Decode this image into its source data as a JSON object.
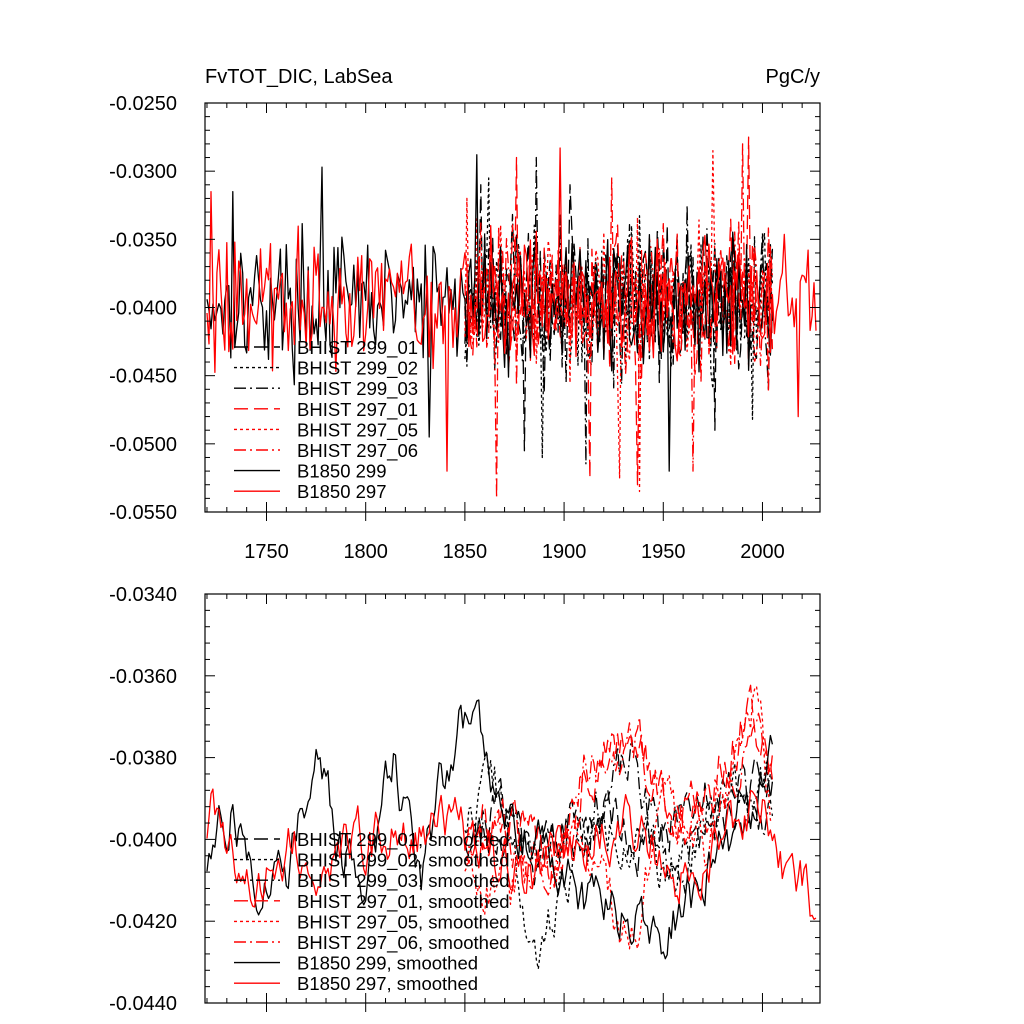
{
  "chart_data": [
    {
      "type": "line",
      "title": "FvTOT_DIC, LabSea",
      "units": "PgC/y",
      "xlim": [
        1719,
        2029
      ],
      "ylim": [
        -0.055,
        -0.025
      ],
      "xticks": [
        1750,
        1800,
        1850,
        1900,
        1950,
        2000
      ],
      "yticks": [
        -0.055,
        -0.05,
        -0.045,
        -0.04,
        -0.035,
        -0.03,
        -0.025
      ],
      "ytick_labels": [
        "-0.0550",
        "-0.0500",
        "-0.0450",
        "-0.0400",
        "-0.0350",
        "-0.0300",
        "-0.0250"
      ],
      "legend_position": "left-lower",
      "series": [
        {
          "name": "BHIST 299_01",
          "color": "#000000",
          "dash": "long-dash",
          "x_range": [
            1850,
            2005
          ],
          "mean": -0.0395,
          "amplitude": 0.004,
          "spikes": [
            [
              1858,
              -0.031
            ],
            [
              1880,
              -0.0505
            ],
            [
              1903,
              -0.031
            ],
            [
              1948,
              -0.0455
            ],
            [
              1976,
              -0.049
            ]
          ],
          "seed": 11
        },
        {
          "name": "BHIST 299_02",
          "color": "#000000",
          "dash": "dot",
          "x_range": [
            1850,
            2005
          ],
          "mean": -0.0395,
          "amplitude": 0.004,
          "spikes": [
            [
              1862,
              -0.0305
            ],
            [
              1889,
              -0.051
            ],
            [
              1934,
              -0.034
            ],
            [
              1995,
              -0.0482
            ]
          ],
          "seed": 12
        },
        {
          "name": "BHIST 299_03",
          "color": "#000000",
          "dash": "dash-dot",
          "x_range": [
            1850,
            2005
          ],
          "mean": -0.0395,
          "amplitude": 0.004,
          "spikes": [
            [
              1886,
              -0.029
            ],
            [
              1911,
              -0.0515
            ],
            [
              1962,
              -0.0325
            ],
            [
              2003,
              -0.046
            ]
          ],
          "seed": 13
        },
        {
          "name": "BHIST 297_01",
          "color": "#ff0000",
          "dash": "long-dash",
          "x_range": [
            1850,
            2005
          ],
          "mean": -0.0395,
          "amplitude": 0.004,
          "spikes": [
            [
              1876,
              -0.029
            ],
            [
              1913,
              -0.0525
            ],
            [
              1937,
              -0.053
            ],
            [
              1993,
              -0.0275
            ]
          ],
          "seed": 14
        },
        {
          "name": "BHIST 297_05",
          "color": "#ff0000",
          "dash": "dot",
          "x_range": [
            1850,
            2005
          ],
          "mean": -0.0395,
          "amplitude": 0.004,
          "spikes": [
            [
              1851,
              -0.032
            ],
            [
              1928,
              -0.0525
            ],
            [
              1938,
              -0.0535
            ],
            [
              1975,
              -0.0285
            ]
          ],
          "seed": 15
        },
        {
          "name": "BHIST 297_06",
          "color": "#ff0000",
          "dash": "dash-dot",
          "x_range": [
            1850,
            2005
          ],
          "mean": -0.0395,
          "amplitude": 0.004,
          "spikes": [
            [
              1866,
              -0.054
            ],
            [
              1924,
              -0.0305
            ],
            [
              1965,
              -0.052
            ],
            [
              1990,
              -0.028
            ]
          ],
          "seed": 16
        },
        {
          "name": "B1850 299",
          "color": "#000000",
          "dash": "solid",
          "x_range": [
            1720,
            2005
          ],
          "mean": -0.0395,
          "amplitude": 0.0036,
          "spikes": [
            [
              1733,
              -0.0315
            ],
            [
              1778,
              -0.0297
            ],
            [
              1856,
              -0.0288
            ],
            [
              1832,
              -0.0495
            ],
            [
              1953,
              -0.052
            ]
          ],
          "seed": 17
        },
        {
          "name": "B1850 297",
          "color": "#ff0000",
          "dash": "solid",
          "x_range": [
            1720,
            2027
          ],
          "mean": -0.0395,
          "amplitude": 0.0036,
          "spikes": [
            [
              1722,
              -0.0315
            ],
            [
              1841,
              -0.052
            ],
            [
              1898,
              -0.0283
            ],
            [
              2018,
              -0.048
            ]
          ],
          "seed": 18
        }
      ]
    },
    {
      "type": "line",
      "title": "",
      "xlim": [
        1719,
        2029
      ],
      "ylim": [
        -0.044,
        -0.034
      ],
      "xticks": [
        1750,
        1800,
        1850,
        1900,
        1950,
        2000
      ],
      "yticks": [
        -0.044,
        -0.042,
        -0.04,
        -0.038,
        -0.036,
        -0.034
      ],
      "ytick_labels": [
        "-0.0440",
        "-0.0420",
        "-0.0400",
        "-0.0380",
        "-0.0360",
        "-0.0340"
      ],
      "legend_position": "left-lower",
      "series": [
        {
          "name": "BHIST 299_01, smoothed",
          "color": "#000000",
          "dash": "long-dash",
          "x_range": [
            1850,
            2005
          ],
          "anchors": [
            [
              1850,
              -0.0398
            ],
            [
              1868,
              -0.039
            ],
            [
              1885,
              -0.0402
            ],
            [
              1905,
              -0.0396
            ],
            [
              1925,
              -0.0392
            ],
            [
              1945,
              -0.0404
            ],
            [
              1965,
              -0.0386
            ],
            [
              1985,
              -0.0392
            ],
            [
              2005,
              -0.0388
            ]
          ],
          "seed": 21
        },
        {
          "name": "BHIST 299_02, smoothed",
          "color": "#000000",
          "dash": "dot",
          "x_range": [
            1850,
            2005
          ],
          "anchors": [
            [
              1850,
              -0.0395
            ],
            [
              1865,
              -0.0384
            ],
            [
              1886,
              -0.0434
            ],
            [
              1905,
              -0.0402
            ],
            [
              1930,
              -0.0396
            ],
            [
              1950,
              -0.041
            ],
            [
              1970,
              -0.0395
            ],
            [
              1988,
              -0.0386
            ],
            [
              2005,
              -0.0392
            ]
          ],
          "seed": 22
        },
        {
          "name": "BHIST 299_03, smoothed",
          "color": "#000000",
          "dash": "dash-dot",
          "x_range": [
            1850,
            2005
          ],
          "anchors": [
            [
              1850,
              -0.0402
            ],
            [
              1870,
              -0.0396
            ],
            [
              1892,
              -0.0403
            ],
            [
              1912,
              -0.0394
            ],
            [
              1935,
              -0.0382
            ],
            [
              1955,
              -0.0408
            ],
            [
              1975,
              -0.0397
            ],
            [
              1992,
              -0.0388
            ],
            [
              2005,
              -0.0393
            ]
          ],
          "seed": 23
        },
        {
          "name": "BHIST 297_01, smoothed",
          "color": "#ff0000",
          "dash": "long-dash",
          "x_range": [
            1850,
            2005
          ],
          "anchors": [
            [
              1850,
              -0.0402
            ],
            [
              1870,
              -0.0396
            ],
            [
              1895,
              -0.0405
            ],
            [
              1912,
              -0.0383
            ],
            [
              1935,
              -0.0372
            ],
            [
              1955,
              -0.0398
            ],
            [
              1978,
              -0.0384
            ],
            [
              1995,
              -0.0368
            ],
            [
              2005,
              -0.0382
            ]
          ],
          "seed": 24
        },
        {
          "name": "BHIST 297_05, smoothed",
          "color": "#ff0000",
          "dash": "dot",
          "x_range": [
            1850,
            2005
          ],
          "anchors": [
            [
              1850,
              -0.0405
            ],
            [
              1875,
              -0.0412
            ],
            [
              1895,
              -0.0402
            ],
            [
              1918,
              -0.0408
            ],
            [
              1932,
              -0.0426
            ],
            [
              1950,
              -0.0396
            ],
            [
              1972,
              -0.0402
            ],
            [
              1995,
              -0.0364
            ],
            [
              2005,
              -0.0394
            ]
          ],
          "seed": 25
        },
        {
          "name": "BHIST 297_06, smoothed",
          "color": "#ff0000",
          "dash": "dash-dot",
          "x_range": [
            1850,
            2005
          ],
          "anchors": [
            [
              1850,
              -0.04
            ],
            [
              1870,
              -0.0398
            ],
            [
              1890,
              -0.0408
            ],
            [
              1910,
              -0.0384
            ],
            [
              1935,
              -0.0375
            ],
            [
              1958,
              -0.0396
            ],
            [
              1980,
              -0.0392
            ],
            [
              1995,
              -0.0372
            ],
            [
              2005,
              -0.0387
            ]
          ],
          "seed": 26
        },
        {
          "name": "B1850 299, smoothed",
          "color": "#000000",
          "dash": "solid",
          "x_range": [
            1720,
            2005
          ],
          "anchors": [
            [
              1720,
              -0.0405
            ],
            [
              1733,
              -0.0392
            ],
            [
              1745,
              -0.041
            ],
            [
              1760,
              -0.0405
            ],
            [
              1775,
              -0.0378
            ],
            [
              1788,
              -0.0406
            ],
            [
              1800,
              -0.041
            ],
            [
              1814,
              -0.0378
            ],
            [
              1828,
              -0.0407
            ],
            [
              1846,
              -0.0372
            ],
            [
              1857,
              -0.0372
            ],
            [
              1872,
              -0.0392
            ],
            [
              1892,
              -0.0404
            ],
            [
              1912,
              -0.0415
            ],
            [
              1930,
              -0.0418
            ],
            [
              1950,
              -0.0426
            ],
            [
              1968,
              -0.041
            ],
            [
              1985,
              -0.0398
            ],
            [
              2005,
              -0.0382
            ]
          ],
          "seed": 27
        },
        {
          "name": "B1850 297, smoothed",
          "color": "#ff0000",
          "dash": "solid",
          "x_range": [
            1720,
            2027
          ],
          "anchors": [
            [
              1720,
              -0.0397
            ],
            [
              1726,
              -0.0392
            ],
            [
              1737,
              -0.0418
            ],
            [
              1755,
              -0.0402
            ],
            [
              1775,
              -0.0405
            ],
            [
              1800,
              -0.0402
            ],
            [
              1825,
              -0.0395
            ],
            [
              1842,
              -0.0398
            ],
            [
              1860,
              -0.0405
            ],
            [
              1880,
              -0.0408
            ],
            [
              1900,
              -0.0402
            ],
            [
              1920,
              -0.0395
            ],
            [
              1940,
              -0.04
            ],
            [
              1960,
              -0.0408
            ],
            [
              1980,
              -0.0398
            ],
            [
              2000,
              -0.0392
            ],
            [
              2010,
              -0.0405
            ],
            [
              2020,
              -0.0408
            ],
            [
              2027,
              -0.0417
            ]
          ],
          "seed": 28
        }
      ]
    }
  ]
}
